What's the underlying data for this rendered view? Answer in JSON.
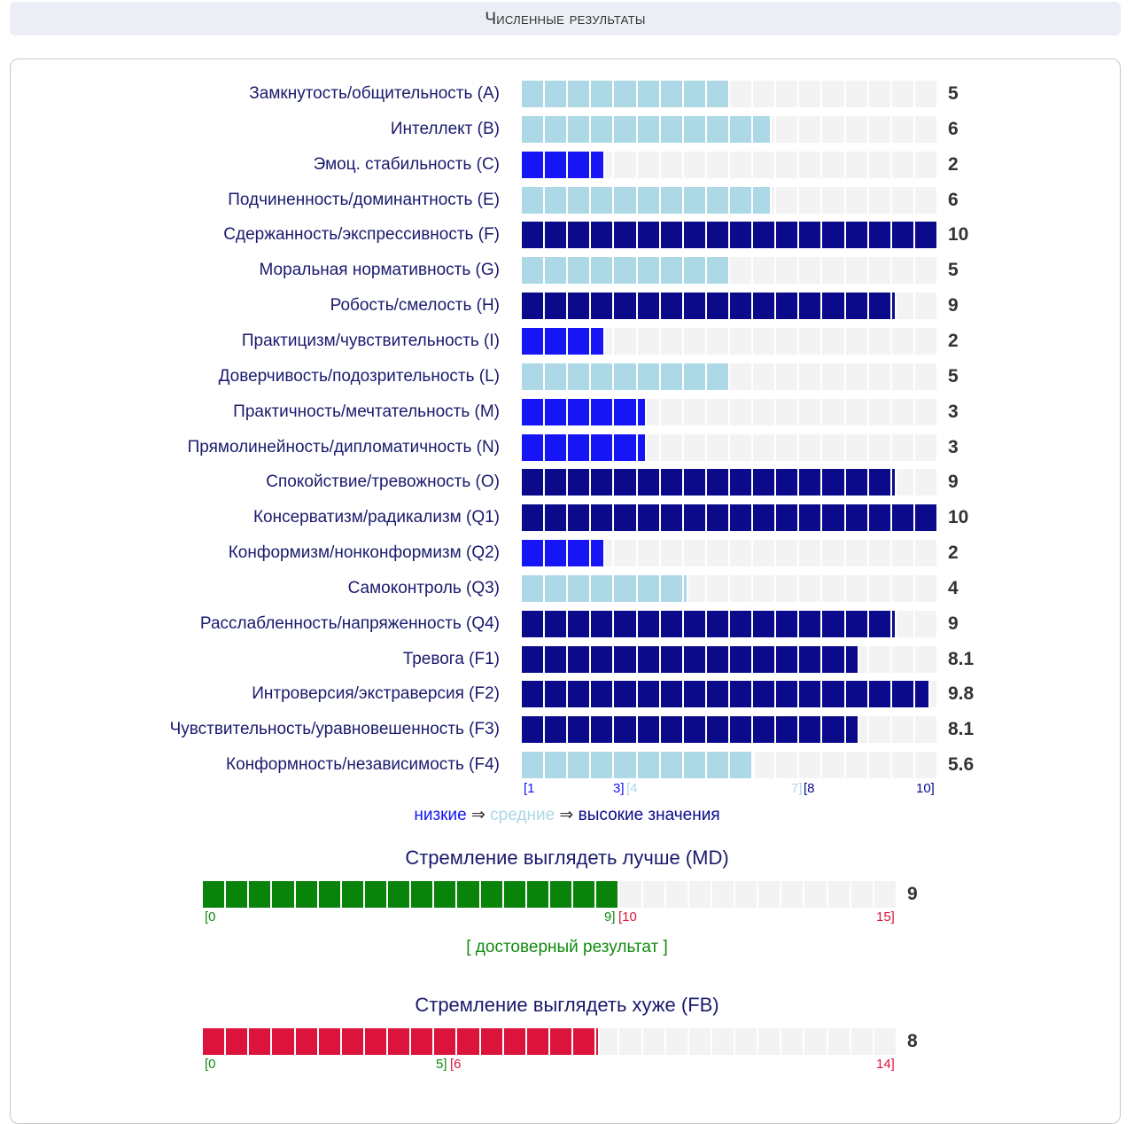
{
  "header": {
    "title": "Численные результаты"
  },
  "colors": {
    "low": "#1515f5",
    "mid": "#add8e6",
    "high": "#0a0a8a",
    "empty": "#f3f3f3",
    "md_fill": "#0a830a",
    "fb_fill": "#dc143c",
    "green": "#0f8a0f",
    "red": "#dc143c"
  },
  "chart_data": [
    {
      "type": "bar",
      "orientation": "horizontal",
      "categories": [
        "Замкнутость/общительность (A)",
        "Интеллект (B)",
        "Эмоц. стабильность (C)",
        "Подчиненность/доминантность (E)",
        "Сдержанность/экспрессивность (F)",
        "Моральная нормативность (G)",
        "Робость/смелость (H)",
        "Практицизм/чувствительность (I)",
        "Доверчивость/подозрительность (L)",
        "Практичность/мечтательность (M)",
        "Прямолинейность/дипломатичность (N)",
        "Спокойствие/тревожность (O)",
        "Консерватизм/радикализм (Q1)",
        "Конформизм/нонконформизм (Q2)",
        "Самоконтроль (Q3)",
        "Расслабленность/напряженность (Q4)",
        "Тревога (F1)",
        "Интроверсия/экстраверсия (F2)",
        "Чувствительность/уравновешенность (F3)",
        "Конформность/независимость (F4)"
      ],
      "values": [
        5,
        6,
        2,
        6,
        10,
        5,
        9,
        2,
        5,
        3,
        3,
        9,
        10,
        2,
        4,
        9,
        8.1,
        9.8,
        8.1,
        5.6
      ],
      "value_labels": [
        "5",
        "6",
        "2",
        "6",
        "10",
        "5",
        "9",
        "2",
        "5",
        "3",
        "3",
        "9",
        "10",
        "2",
        "4",
        "9",
        "8.1",
        "9.8",
        "8.1",
        "5.6"
      ],
      "xlim": [
        0,
        10
      ],
      "scale_labels": {
        "low_start": "[1",
        "low_end": "3]",
        "mid_start": "[4",
        "mid_end": "7]",
        "high_start": "[8",
        "high_end": "10]"
      },
      "legend": {
        "low": "низкие",
        "arrow1": " ⇒ ",
        "mid": "средние",
        "arrow2": " ⇒ ",
        "high": "высокие значения"
      }
    },
    {
      "type": "bar",
      "title": "Стремление выглядеть лучше (MD)",
      "value": 9,
      "value_label": "9",
      "xlim": [
        0,
        15
      ],
      "scale_labels": {
        "start": "[0",
        "split_left": "9]",
        "split_right": "[10",
        "end": "15]"
      },
      "verdict": "[ достоверный результат ]"
    },
    {
      "type": "bar",
      "title": "Стремление выглядеть хуже (FB)",
      "value": 8,
      "value_label": "8",
      "xlim": [
        0,
        14
      ],
      "scale_labels": {
        "start": "[0",
        "split_left": "5]",
        "split_right": "[6",
        "end": "14]"
      }
    }
  ]
}
